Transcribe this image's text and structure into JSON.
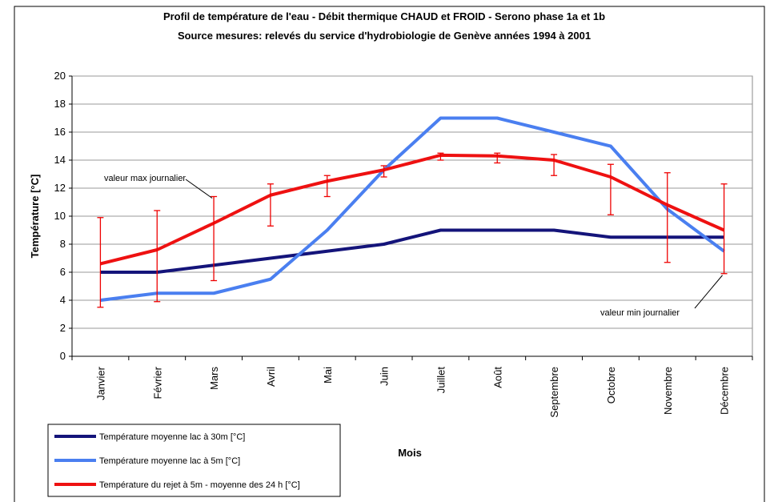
{
  "chart_data": {
    "type": "line",
    "title": "Profil de température de l'eau - Débit thermique CHAUD et FROID - Serono phase 1a et 1b",
    "subtitle": "Source mesures: relevés du service d'hydrobiologie de Genève années 1994 à 2001",
    "x_label": "Mois",
    "y_label": "Température [°C]",
    "categories": [
      "Janvier",
      "Février",
      "Mars",
      "Avril",
      "Mai",
      "Juin",
      "Juillet",
      "Août",
      "Septembre",
      "Octobre",
      "Novembre",
      "Décembre"
    ],
    "series": [
      {
        "name": "Température moyenne lac à 30m [°C]",
        "color": "#14147a",
        "values": [
          6,
          6,
          6.5,
          7,
          7.5,
          8,
          9,
          9,
          9,
          8.5,
          8.5,
          8.5
        ]
      },
      {
        "name": "Température moyenne lac à 5m [°C]",
        "color": "#4a7ff0",
        "values": [
          4,
          4.5,
          4.5,
          5.5,
          9,
          13.3,
          17,
          17,
          16,
          15,
          10.5,
          7.5
        ]
      },
      {
        "name": "Température du rejet à 5m - moyenne des 24 h [°C]",
        "color": "#ee1111",
        "values": [
          6.6,
          7.6,
          9.5,
          11.5,
          12.5,
          13.3,
          14.35,
          14.3,
          14,
          12.8,
          10.8,
          9
        ],
        "error_min": [
          3.5,
          3.9,
          5.4,
          9.3,
          11.4,
          12.8,
          14,
          13.8,
          12.9,
          10.1,
          6.7,
          5.9
        ],
        "error_max": [
          9.9,
          10.4,
          11.4,
          12.3,
          12.9,
          13.6,
          14.5,
          14.5,
          14.4,
          13.7,
          13.1,
          12.3
        ]
      }
    ],
    "annotations": [
      {
        "text": "valeur max journalier",
        "category": 2
      },
      {
        "text": "valeur min journalier",
        "category": 11
      }
    ],
    "ylim": [
      0,
      20
    ],
    "yticks": [
      0,
      2,
      4,
      6,
      8,
      10,
      12,
      14,
      16,
      18,
      20
    ],
    "grid": true
  }
}
